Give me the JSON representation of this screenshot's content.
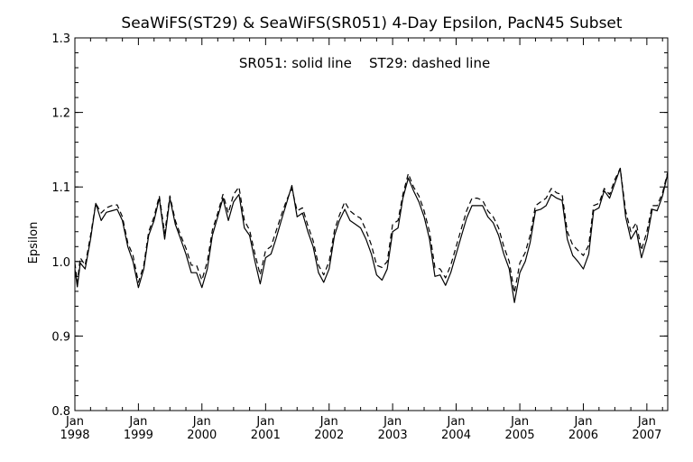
{
  "chart_data": {
    "type": "line",
    "title": "SeaWiFS(ST29) & SeaWiFS(SR051) 4-Day Epsilon, PacN45 Subset",
    "annotation": "SR051: solid line    ST29: dashed line",
    "xlabel": "",
    "ylabel": "Epsilon",
    "xlim": [
      "1998-01-01",
      "2007-05-01"
    ],
    "ylim": [
      0.8,
      1.3
    ],
    "y_ticks": [
      "0.8",
      "0.9",
      "1.0",
      "1.1",
      "1.2",
      "1.3"
    ],
    "x_ticks": [
      {
        "month": "Jan",
        "year": "1998",
        "date": "1998-01-01"
      },
      {
        "month": "Jan",
        "year": "1999",
        "date": "1999-01-01"
      },
      {
        "month": "Jan",
        "year": "2000",
        "date": "2000-01-01"
      },
      {
        "month": "Jan",
        "year": "2001",
        "date": "2001-01-01"
      },
      {
        "month": "Jan",
        "year": "2002",
        "date": "2002-01-01"
      },
      {
        "month": "Jan",
        "year": "2003",
        "date": "2003-01-01"
      },
      {
        "month": "Jan",
        "year": "2004",
        "date": "2004-01-01"
      },
      {
        "month": "Jan",
        "year": "2005",
        "date": "2005-01-01"
      },
      {
        "month": "Jan",
        "year": "2006",
        "date": "2006-01-01"
      },
      {
        "month": "Jan",
        "year": "2007",
        "date": "2007-01-01"
      }
    ],
    "grid": false,
    "series": [
      {
        "name": "SR051",
        "style": "solid",
        "points": [
          [
            "1998-01-01",
            0.99
          ],
          [
            "1998-01-15",
            0.966
          ],
          [
            "1998-02-01",
            0.998
          ],
          [
            "1998-03-01",
            0.99
          ],
          [
            "1998-04-01",
            1.03
          ],
          [
            "1998-05-01",
            1.078
          ],
          [
            "1998-06-01",
            1.055
          ],
          [
            "1998-07-01",
            1.066
          ],
          [
            "1998-08-01",
            1.068
          ],
          [
            "1998-09-01",
            1.07
          ],
          [
            "1998-10-01",
            1.055
          ],
          [
            "1998-11-01",
            1.02
          ],
          [
            "1998-12-01",
            1.0
          ],
          [
            "1999-01-01",
            0.965
          ],
          [
            "1999-02-01",
            0.99
          ],
          [
            "1999-03-01",
            1.035
          ],
          [
            "1999-04-01",
            1.055
          ],
          [
            "1999-05-01",
            1.085
          ],
          [
            "1999-06-01",
            1.03
          ],
          [
            "1999-07-01",
            1.085
          ],
          [
            "1999-08-01",
            1.05
          ],
          [
            "1999-09-01",
            1.03
          ],
          [
            "1999-10-01",
            1.01
          ],
          [
            "1999-11-01",
            0.985
          ],
          [
            "1999-12-01",
            0.985
          ],
          [
            "2000-01-01",
            0.965
          ],
          [
            "2000-02-01",
            0.99
          ],
          [
            "2000-03-01",
            1.035
          ],
          [
            "2000-04-01",
            1.06
          ],
          [
            "2000-05-01",
            1.085
          ],
          [
            "2000-06-01",
            1.055
          ],
          [
            "2000-07-01",
            1.08
          ],
          [
            "2000-08-01",
            1.09
          ],
          [
            "2000-09-01",
            1.045
          ],
          [
            "2000-10-01",
            1.035
          ],
          [
            "2000-11-01",
            1.0
          ],
          [
            "2000-12-01",
            0.97
          ],
          [
            "2001-01-01",
            1.005
          ],
          [
            "2001-02-01",
            1.01
          ],
          [
            "2001-03-01",
            1.03
          ],
          [
            "2001-04-01",
            1.055
          ],
          [
            "2001-05-01",
            1.078
          ],
          [
            "2001-06-01",
            1.102
          ],
          [
            "2001-07-01",
            1.06
          ],
          [
            "2001-08-01",
            1.065
          ],
          [
            "2001-09-01",
            1.04
          ],
          [
            "2001-10-01",
            1.02
          ],
          [
            "2001-11-01",
            0.985
          ],
          [
            "2001-12-01",
            0.972
          ],
          [
            "2002-01-01",
            0.99
          ],
          [
            "2002-02-01",
            1.035
          ],
          [
            "2002-03-01",
            1.055
          ],
          [
            "2002-04-01",
            1.07
          ],
          [
            "2002-05-01",
            1.055
          ],
          [
            "2002-06-01",
            1.05
          ],
          [
            "2002-07-01",
            1.045
          ],
          [
            "2002-08-01",
            1.03
          ],
          [
            "2002-09-01",
            1.01
          ],
          [
            "2002-10-01",
            0.982
          ],
          [
            "2002-11-01",
            0.975
          ],
          [
            "2002-12-01",
            0.99
          ],
          [
            "2003-01-01",
            1.04
          ],
          [
            "2003-02-01",
            1.045
          ],
          [
            "2003-03-01",
            1.085
          ],
          [
            "2003-04-01",
            1.112
          ],
          [
            "2003-05-01",
            1.095
          ],
          [
            "2003-06-01",
            1.08
          ],
          [
            "2003-07-01",
            1.06
          ],
          [
            "2003-08-01",
            1.03
          ],
          [
            "2003-09-01",
            0.98
          ],
          [
            "2003-10-01",
            0.982
          ],
          [
            "2003-11-01",
            0.968
          ],
          [
            "2003-12-01",
            0.985
          ],
          [
            "2004-01-01",
            1.01
          ],
          [
            "2004-02-01",
            1.035
          ],
          [
            "2004-03-01",
            1.058
          ],
          [
            "2004-04-01",
            1.075
          ],
          [
            "2004-05-01",
            1.075
          ],
          [
            "2004-06-01",
            1.075
          ],
          [
            "2004-07-01",
            1.06
          ],
          [
            "2004-08-01",
            1.052
          ],
          [
            "2004-09-01",
            1.035
          ],
          [
            "2004-10-01",
            1.01
          ],
          [
            "2004-11-01",
            0.99
          ],
          [
            "2004-12-01",
            0.945
          ],
          [
            "2005-01-01",
            0.985
          ],
          [
            "2005-02-01",
            1.0
          ],
          [
            "2005-03-01",
            1.025
          ],
          [
            "2005-04-01",
            1.068
          ],
          [
            "2005-05-01",
            1.07
          ],
          [
            "2005-06-01",
            1.075
          ],
          [
            "2005-07-01",
            1.09
          ],
          [
            "2005-08-01",
            1.085
          ],
          [
            "2005-09-01",
            1.082
          ],
          [
            "2005-10-01",
            1.03
          ],
          [
            "2005-11-01",
            1.008
          ],
          [
            "2005-12-01",
            1.0
          ],
          [
            "2006-01-01",
            0.99
          ],
          [
            "2006-02-01",
            1.01
          ],
          [
            "2006-03-01",
            1.068
          ],
          [
            "2006-04-01",
            1.072
          ],
          [
            "2006-05-01",
            1.095
          ],
          [
            "2006-06-01",
            1.085
          ],
          [
            "2006-07-01",
            1.105
          ],
          [
            "2006-08-01",
            1.125
          ],
          [
            "2006-09-01",
            1.06
          ],
          [
            "2006-10-01",
            1.03
          ],
          [
            "2006-11-01",
            1.042
          ],
          [
            "2006-12-01",
            1.005
          ],
          [
            "2007-01-01",
            1.03
          ],
          [
            "2007-02-01",
            1.07
          ],
          [
            "2007-03-01",
            1.068
          ],
          [
            "2007-04-01",
            1.088
          ],
          [
            "2007-05-01",
            1.118
          ]
        ]
      },
      {
        "name": "ST29",
        "style": "dashed",
        "points": [
          [
            "1998-01-01",
            0.998
          ],
          [
            "1998-01-15",
            0.972
          ],
          [
            "1998-02-01",
            1.005
          ],
          [
            "1998-03-01",
            0.995
          ],
          [
            "1998-04-01",
            1.035
          ],
          [
            "1998-05-01",
            1.078
          ],
          [
            "1998-06-01",
            1.065
          ],
          [
            "1998-07-01",
            1.072
          ],
          [
            "1998-08-01",
            1.075
          ],
          [
            "1998-09-01",
            1.076
          ],
          [
            "1998-10-01",
            1.06
          ],
          [
            "1998-11-01",
            1.025
          ],
          [
            "1998-12-01",
            1.008
          ],
          [
            "1999-01-01",
            0.972
          ],
          [
            "1999-02-01",
            0.995
          ],
          [
            "1999-03-01",
            1.04
          ],
          [
            "1999-04-01",
            1.06
          ],
          [
            "1999-05-01",
            1.088
          ],
          [
            "1999-06-01",
            1.038
          ],
          [
            "1999-07-01",
            1.088
          ],
          [
            "1999-08-01",
            1.055
          ],
          [
            "1999-09-01",
            1.035
          ],
          [
            "1999-10-01",
            1.018
          ],
          [
            "1999-11-01",
            0.995
          ],
          [
            "1999-12-01",
            0.995
          ],
          [
            "2000-01-01",
            0.975
          ],
          [
            "2000-02-01",
            1.0
          ],
          [
            "2000-03-01",
            1.042
          ],
          [
            "2000-04-01",
            1.065
          ],
          [
            "2000-05-01",
            1.09
          ],
          [
            "2000-06-01",
            1.065
          ],
          [
            "2000-07-01",
            1.09
          ],
          [
            "2000-08-01",
            1.1
          ],
          [
            "2000-09-01",
            1.055
          ],
          [
            "2000-10-01",
            1.042
          ],
          [
            "2000-11-01",
            1.01
          ],
          [
            "2000-12-01",
            0.982
          ],
          [
            "2001-01-01",
            1.015
          ],
          [
            "2001-02-01",
            1.02
          ],
          [
            "2001-03-01",
            1.04
          ],
          [
            "2001-04-01",
            1.062
          ],
          [
            "2001-05-01",
            1.082
          ],
          [
            "2001-06-01",
            1.098
          ],
          [
            "2001-07-01",
            1.068
          ],
          [
            "2001-08-01",
            1.072
          ],
          [
            "2001-09-01",
            1.048
          ],
          [
            "2001-10-01",
            1.028
          ],
          [
            "2001-11-01",
            0.995
          ],
          [
            "2001-12-01",
            0.982
          ],
          [
            "2002-01-01",
            1.0
          ],
          [
            "2002-02-01",
            1.042
          ],
          [
            "2002-03-01",
            1.062
          ],
          [
            "2002-04-01",
            1.08
          ],
          [
            "2002-05-01",
            1.068
          ],
          [
            "2002-06-01",
            1.062
          ],
          [
            "2002-07-01",
            1.058
          ],
          [
            "2002-08-01",
            1.042
          ],
          [
            "2002-09-01",
            1.022
          ],
          [
            "2002-10-01",
            0.995
          ],
          [
            "2002-11-01",
            0.992
          ],
          [
            "2002-12-01",
            1.0
          ],
          [
            "2003-01-01",
            1.05
          ],
          [
            "2003-02-01",
            1.055
          ],
          [
            "2003-03-01",
            1.09
          ],
          [
            "2003-04-01",
            1.118
          ],
          [
            "2003-05-01",
            1.1
          ],
          [
            "2003-06-01",
            1.088
          ],
          [
            "2003-07-01",
            1.068
          ],
          [
            "2003-08-01",
            1.04
          ],
          [
            "2003-09-01",
            0.992
          ],
          [
            "2003-10-01",
            0.99
          ],
          [
            "2003-11-01",
            0.978
          ],
          [
            "2003-12-01",
            0.995
          ],
          [
            "2004-01-01",
            1.02
          ],
          [
            "2004-02-01",
            1.045
          ],
          [
            "2004-03-01",
            1.068
          ],
          [
            "2004-04-01",
            1.085
          ],
          [
            "2004-05-01",
            1.085
          ],
          [
            "2004-06-01",
            1.082
          ],
          [
            "2004-07-01",
            1.068
          ],
          [
            "2004-08-01",
            1.06
          ],
          [
            "2004-09-01",
            1.045
          ],
          [
            "2004-10-01",
            1.02
          ],
          [
            "2004-11-01",
            1.0
          ],
          [
            "2004-12-01",
            0.958
          ],
          [
            "2005-01-01",
            0.998
          ],
          [
            "2005-02-01",
            1.012
          ],
          [
            "2005-03-01",
            1.035
          ],
          [
            "2005-04-01",
            1.075
          ],
          [
            "2005-05-01",
            1.08
          ],
          [
            "2005-06-01",
            1.085
          ],
          [
            "2005-07-01",
            1.098
          ],
          [
            "2005-08-01",
            1.092
          ],
          [
            "2005-09-01",
            1.09
          ],
          [
            "2005-10-01",
            1.04
          ],
          [
            "2005-11-01",
            1.022
          ],
          [
            "2005-12-01",
            1.015
          ],
          [
            "2006-01-01",
            1.008
          ],
          [
            "2006-02-01",
            1.022
          ],
          [
            "2006-03-01",
            1.075
          ],
          [
            "2006-04-01",
            1.078
          ],
          [
            "2006-05-01",
            1.098
          ],
          [
            "2006-06-01",
            1.09
          ],
          [
            "2006-07-01",
            1.11
          ],
          [
            "2006-08-01",
            1.125
          ],
          [
            "2006-09-01",
            1.068
          ],
          [
            "2006-10-01",
            1.04
          ],
          [
            "2006-11-01",
            1.052
          ],
          [
            "2006-12-01",
            1.015
          ],
          [
            "2007-01-01",
            1.04
          ],
          [
            "2007-02-01",
            1.075
          ],
          [
            "2007-03-01",
            1.075
          ],
          [
            "2007-04-01",
            1.092
          ],
          [
            "2007-05-01",
            1.12
          ]
        ]
      }
    ]
  }
}
